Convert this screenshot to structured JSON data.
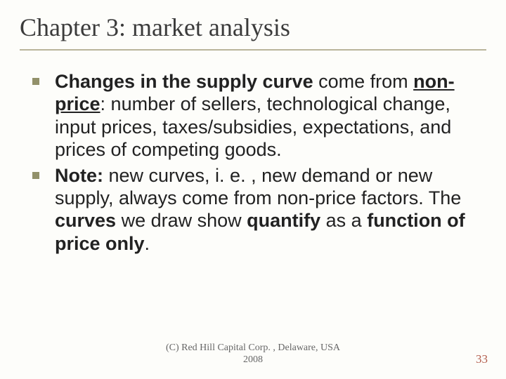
{
  "title": "Chapter 3: market analysis",
  "bullets": [
    {
      "runs": [
        {
          "text": "Changes in the supply curve",
          "bold": true
        },
        {
          "text": " come from "
        },
        {
          "text": "non-price",
          "bold": true,
          "underline": true
        },
        {
          "text": ": number of sellers, technological change, input prices, taxes/subsidies, expectations, and prices of competing goods."
        }
      ]
    },
    {
      "runs": [
        {
          "text": "Note:",
          "bold": true
        },
        {
          "text": " new curves, i. e. , new demand or new supply, always come from non-price factors.  The "
        },
        {
          "text": "curves",
          "bold": true
        },
        {
          "text": " we draw show "
        },
        {
          "text": "quantify",
          "bold": true
        },
        {
          "text": " as a "
        },
        {
          "text": "function of price only",
          "bold": true
        },
        {
          "text": "."
        }
      ]
    }
  ],
  "footer": {
    "line1": "(C) Red Hill Capital Corp. , Delaware, USA",
    "line2": "2008"
  },
  "page_number": "33",
  "colors": {
    "bullet": "#92916a",
    "rule": "#b9b49a",
    "page_number": "#b25b4a"
  }
}
